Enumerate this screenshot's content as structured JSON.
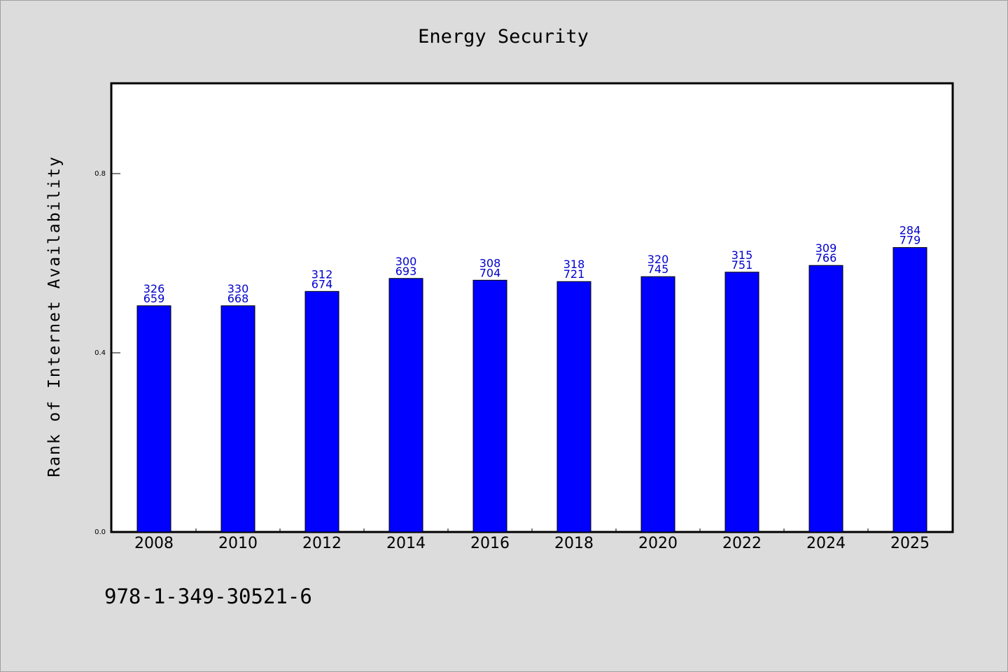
{
  "chart_data": {
    "type": "bar",
    "title": "Energy Security",
    "xlabel": "",
    "ylabel": "Rank of Internet Availability",
    "categories": [
      "2008",
      "2010",
      "2012",
      "2014",
      "2016",
      "2018",
      "2020",
      "2022",
      "2024",
      "2025"
    ],
    "values": [
      0.505,
      0.505,
      0.537,
      0.566,
      0.562,
      0.559,
      0.57,
      0.58,
      0.595,
      0.635
    ],
    "bar_labels": [
      [
        "326",
        "659"
      ],
      [
        "330",
        "668"
      ],
      [
        "312",
        "674"
      ],
      [
        "300",
        "693"
      ],
      [
        "308",
        "704"
      ],
      [
        "318",
        "721"
      ],
      [
        "320",
        "745"
      ],
      [
        "315",
        "751"
      ],
      [
        "309",
        "766"
      ],
      [
        "284",
        "779"
      ]
    ],
    "ylim": [
      0,
      1.0
    ],
    "yticks": [
      "0.0",
      "0.4",
      "0.8"
    ],
    "ytick_values": [
      0.0,
      0.4,
      0.8
    ],
    "grid": false,
    "bar_color": "#0000ff",
    "label_color": "#0000cc"
  },
  "footnote": "978-1-349-30521-6"
}
